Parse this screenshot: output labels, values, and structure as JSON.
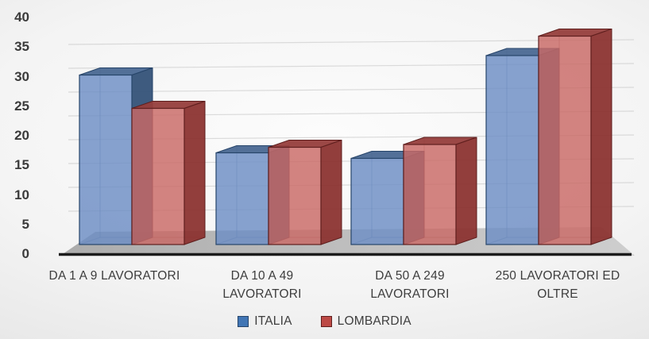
{
  "chart_data": {
    "type": "bar",
    "variant": "3d-column",
    "title": "",
    "xlabel": "",
    "ylabel": "",
    "categories": [
      {
        "label": "DA 1 A 9 LAVORATORI",
        "lines": [
          "DA 1 A 9 LAVORATORI"
        ]
      },
      {
        "label": "DA 10 A 49 LAVORATORI",
        "lines": [
          "DA 10 A 49",
          "LAVORATORI"
        ]
      },
      {
        "label": "DA 50 A 249 LAVORATORI",
        "lines": [
          "DA 50 A 249",
          "LAVORATORI"
        ]
      },
      {
        "label": "250 LAVORATORI ED OLTRE",
        "lines": [
          "250 LAVORATORI ED",
          "OLTRE"
        ]
      }
    ],
    "series": [
      {
        "name": "ITALIA",
        "values": [
          30.5,
          16.5,
          15.5,
          34
        ],
        "colors": {
          "front": "#6c8ec4",
          "top": "#4a6892",
          "side": "#345278",
          "edge": "#27456a",
          "swatch": "#4176b5"
        }
      },
      {
        "name": "LOMBARDIA",
        "values": [
          24.5,
          17.5,
          18,
          37.5
        ],
        "colors": {
          "front": "#c96965",
          "top": "#963e3c",
          "side": "#8c3432",
          "edge": "#5f1f1e",
          "swatch": "#bd4a46"
        }
      }
    ],
    "ylim": [
      0,
      40
    ],
    "yticks": [
      0,
      5,
      10,
      15,
      20,
      25,
      30,
      35,
      40
    ],
    "grid": true,
    "legend_position": "bottom",
    "axis_line_color": "#1b1b1b",
    "gridline_color": "#d2d2d2",
    "floor_color": "#b9b9b9",
    "text_color": "#3d3d3d"
  }
}
